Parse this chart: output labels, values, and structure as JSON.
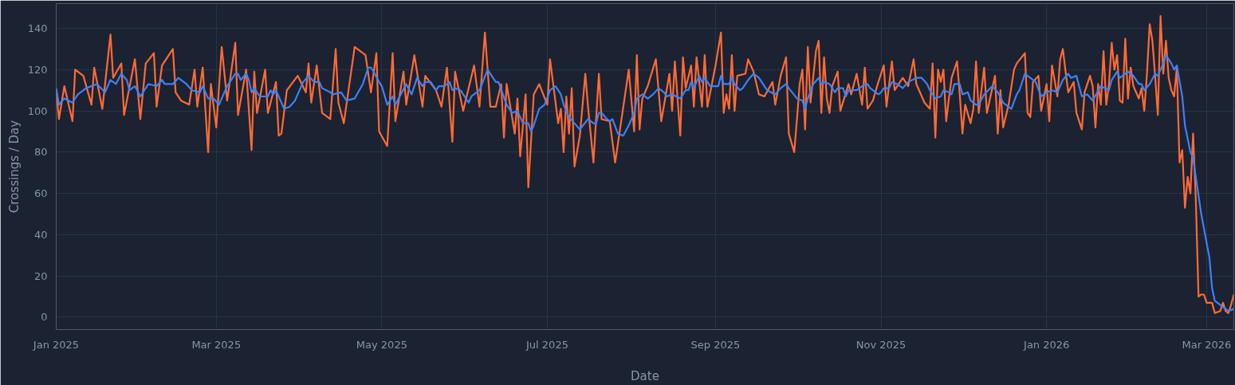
{
  "chart_data": {
    "type": "line",
    "xlabel": "Date",
    "ylabel": "Crossings / Day",
    "xlim": [
      "2025-01-01",
      "2026-03-11"
    ],
    "ylim": [
      -6,
      152
    ],
    "yticks": [
      0,
      20,
      40,
      60,
      80,
      100,
      120,
      140
    ],
    "xticks": [
      {
        "value": "2025-01-01",
        "label": "Jan 2025"
      },
      {
        "value": "2025-03-01",
        "label": "Mar 2025"
      },
      {
        "value": "2025-05-01",
        "label": "May 2025"
      },
      {
        "value": "2025-07-01",
        "label": "Jul 2025"
      },
      {
        "value": "2025-09-01",
        "label": "Sep 2025"
      },
      {
        "value": "2025-11-01",
        "label": "Nov 2025"
      },
      {
        "value": "2026-01-01",
        "label": "Jan 2026"
      },
      {
        "value": "2026-03-01",
        "label": "Mar 2026"
      }
    ],
    "grid": true,
    "series": [
      {
        "color": "#ff6b35",
        "x": [
          "2025-01-01",
          "2025-01-02",
          "2025-01-04",
          "2025-01-07",
          "2025-01-08",
          "2025-01-11",
          "2025-01-14",
          "2025-01-15",
          "2025-01-18",
          "2025-01-21",
          "2025-01-22",
          "2025-01-25",
          "2025-01-26",
          "2025-01-30",
          "2025-02-01",
          "2025-02-03",
          "2025-02-06",
          "2025-02-07",
          "2025-02-09",
          "2025-02-13",
          "2025-02-14",
          "2025-02-16",
          "2025-02-19",
          "2025-02-21",
          "2025-02-22",
          "2025-02-24",
          "2025-02-26",
          "2025-02-27",
          "2025-03-01",
          "2025-03-03",
          "2025-03-05",
          "2025-03-08",
          "2025-03-09",
          "2025-03-12",
          "2025-03-14",
          "2025-03-15",
          "2025-03-16",
          "2025-03-19",
          "2025-03-20",
          "2025-03-23",
          "2025-03-24",
          "2025-03-25",
          "2025-03-27",
          "2025-03-31",
          "2025-04-03",
          "2025-04-04",
          "2025-04-05",
          "2025-04-07",
          "2025-04-09",
          "2025-04-12",
          "2025-04-14",
          "2025-04-15",
          "2025-04-17",
          "2025-04-21",
          "2025-04-25",
          "2025-04-27",
          "2025-04-29",
          "2025-04-30",
          "2025-05-03",
          "2025-05-05",
          "2025-05-06",
          "2025-05-09",
          "2025-05-10",
          "2025-05-13",
          "2025-05-16",
          "2025-05-17",
          "2025-05-21",
          "2025-05-23",
          "2025-05-25",
          "2025-05-27",
          "2025-05-28",
          "2025-05-31",
          "2025-06-04",
          "2025-06-06",
          "2025-06-08",
          "2025-06-10",
          "2025-06-12",
          "2025-06-14",
          "2025-06-15",
          "2025-06-16",
          "2025-06-19",
          "2025-06-20",
          "2025-06-21",
          "2025-06-23",
          "2025-06-24",
          "2025-06-26",
          "2025-06-28",
          "2025-07-01",
          "2025-07-02",
          "2025-07-05",
          "2025-07-06",
          "2025-07-07",
          "2025-07-08",
          "2025-07-09",
          "2025-07-10",
          "2025-07-11",
          "2025-07-13",
          "2025-07-15",
          "2025-07-16",
          "2025-07-18",
          "2025-07-20",
          "2025-07-21",
          "2025-07-24",
          "2025-07-26",
          "2025-07-31",
          "2025-08-02",
          "2025-08-03",
          "2025-08-04",
          "2025-08-05",
          "2025-08-07",
          "2025-08-10",
          "2025-08-12",
          "2025-08-15",
          "2025-08-16",
          "2025-08-17",
          "2025-08-19",
          "2025-08-20",
          "2025-08-21",
          "2025-08-23",
          "2025-08-24",
          "2025-08-25",
          "2025-08-27",
          "2025-08-28",
          "2025-08-29",
          "2025-09-01",
          "2025-09-03",
          "2025-09-04",
          "2025-09-05",
          "2025-09-06",
          "2025-09-07",
          "2025-09-08",
          "2025-09-09",
          "2025-09-12",
          "2025-09-13",
          "2025-09-15",
          "2025-09-17",
          "2025-09-19",
          "2025-09-22",
          "2025-09-23",
          "2025-09-25",
          "2025-09-27",
          "2025-09-28",
          "2025-09-30",
          "2025-10-01",
          "2025-10-02",
          "2025-10-03",
          "2025-10-04",
          "2025-10-05",
          "2025-10-06",
          "2025-10-08",
          "2025-10-09",
          "2025-10-10",
          "2025-10-11",
          "2025-10-12",
          "2025-10-13",
          "2025-10-14",
          "2025-10-16",
          "2025-10-17",
          "2025-10-20",
          "2025-10-21",
          "2025-10-23",
          "2025-10-25",
          "2025-10-26",
          "2025-10-27",
          "2025-10-29",
          "2025-10-31",
          "2025-11-02",
          "2025-11-03",
          "2025-11-05",
          "2025-11-06",
          "2025-11-09",
          "2025-11-11",
          "2025-11-13",
          "2025-11-14",
          "2025-11-17",
          "2025-11-19",
          "2025-11-20",
          "2025-11-21",
          "2025-11-22",
          "2025-11-23",
          "2025-11-24",
          "2025-11-25",
          "2025-11-26",
          "2025-11-27",
          "2025-11-29",
          "2025-11-30",
          "2025-12-01",
          "2025-12-02",
          "2025-12-04",
          "2025-12-05",
          "2025-12-06",
          "2025-12-07",
          "2025-12-09",
          "2025-12-10",
          "2025-12-13",
          "2025-12-14",
          "2025-12-15",
          "2025-12-16",
          "2025-12-18",
          "2025-12-20",
          "2025-12-21",
          "2025-12-24",
          "2025-12-25",
          "2025-12-26",
          "2025-12-27",
          "2025-12-29",
          "2025-12-30",
          "2026-01-01",
          "2026-01-02",
          "2026-01-03",
          "2026-01-05",
          "2026-01-06",
          "2026-01-07",
          "2026-01-08",
          "2026-01-09",
          "2026-01-11",
          "2026-01-12",
          "2026-01-14",
          "2026-01-15",
          "2026-01-17",
          "2026-01-18",
          "2026-01-19",
          "2026-01-20",
          "2026-01-21",
          "2026-01-22",
          "2026-01-23",
          "2026-01-24",
          "2026-01-25",
          "2026-01-26",
          "2026-01-27",
          "2026-01-28",
          "2026-01-29",
          "2026-01-30",
          "2026-01-31",
          "2026-02-01",
          "2026-02-02",
          "2026-02-04",
          "2026-02-05",
          "2026-02-06",
          "2026-02-07",
          "2026-02-08",
          "2026-02-09",
          "2026-02-10",
          "2026-02-11",
          "2026-02-12",
          "2026-02-13",
          "2026-02-14",
          "2026-02-15",
          "2026-02-16",
          "2026-02-17",
          "2026-02-18",
          "2026-02-19",
          "2026-02-20",
          "2026-02-21",
          "2026-02-22",
          "2026-02-23",
          "2026-02-24",
          "2026-02-25",
          "2026-02-26",
          "2026-02-27",
          "2026-02-28",
          "2026-03-01",
          "2026-03-03",
          "2026-03-04",
          "2026-03-06",
          "2026-03-07",
          "2026-03-08",
          "2026-03-09",
          "2026-03-10",
          "2026-03-11"
        ],
        "values": [
          110,
          96,
          112,
          95,
          120,
          117,
          103,
          121,
          101,
          137,
          116,
          123,
          98,
          125,
          96,
          123,
          128,
          102,
          122,
          130,
          109,
          105,
          103,
          120,
          102,
          121,
          80,
          113,
          92,
          131,
          105,
          133,
          98,
          120,
          81,
          119,
          99,
          120,
          99,
          114,
          88,
          89,
          110,
          117,
          109,
          123,
          104,
          122,
          99,
          96,
          130,
          104,
          94,
          131,
          127,
          109,
          128,
          90,
          83,
          128,
          95,
          119,
          103,
          127,
          102,
          117,
          110,
          102,
          121,
          85,
          119,
          100,
          122,
          102,
          138,
          102,
          102,
          113,
          87,
          113,
          89,
          106,
          78,
          108,
          63,
          108,
          113,
          103,
          125,
          94,
          101,
          80,
          107,
          89,
          111,
          73,
          88,
          118,
          102,
          75,
          118,
          96,
          95,
          75,
          120,
          90,
          127,
          91,
          106,
          112,
          125,
          95,
          118,
          100,
          124,
          88,
          126,
          111,
          122,
          102,
          126,
          102,
          127,
          102,
          122,
          138,
          99,
          108,
          101,
          127,
          100,
          117,
          118,
          125,
          119,
          108,
          107,
          114,
          103,
          117,
          126,
          89,
          80,
          96,
          113,
          120,
          91,
          131,
          104,
          129,
          134,
          99,
          126,
          106,
          99,
          112,
          119,
          100,
          113,
          108,
          118,
          103,
          121,
          101,
          105,
          114,
          122,
          102,
          124,
          110,
          116,
          112,
          125,
          113,
          104,
          101,
          123,
          87,
          120,
          114,
          120,
          95,
          106,
          116,
          124,
          108,
          89,
          103,
          94,
          101,
          124,
          99,
          121,
          99,
          117,
          89,
          110,
          92,
          103,
          120,
          123,
          128,
          99,
          97,
          114,
          117,
          100,
          113,
          95,
          122,
          107,
          125,
          130,
          119,
          109,
          114,
          99,
          91,
          109,
          117,
          112,
          92,
          113,
          103,
          129,
          103,
          113,
          133,
          120,
          127,
          105,
          104,
          135,
          106,
          121,
          112,
          106,
          111,
          100,
          118,
          142,
          134,
          117,
          98,
          146,
          118,
          134,
          116,
          110,
          107,
          121,
          75,
          81,
          53,
          68,
          60,
          89,
          57,
          10,
          11,
          11,
          7,
          7,
          2,
          3,
          7,
          3,
          2,
          6,
          11
        ]
      },
      {
        "color": "#3b82f6",
        "x": [
          "2025-01-01",
          "2025-01-02",
          "2025-01-04",
          "2025-01-07",
          "2025-01-09",
          "2025-01-12",
          "2025-01-16",
          "2025-01-19",
          "2025-01-21",
          "2025-01-23",
          "2025-01-25",
          "2025-01-27",
          "2025-01-28",
          "2025-01-30",
          "2025-02-01",
          "2025-02-04",
          "2025-02-07",
          "2025-02-09",
          "2025-02-10",
          "2025-02-13",
          "2025-02-15",
          "2025-02-18",
          "2025-02-20",
          "2025-02-23",
          "2025-02-24",
          "2025-02-26",
          "2025-02-28",
          "2025-03-02",
          "2025-03-05",
          "2025-03-08",
          "2025-03-09",
          "2025-03-10",
          "2025-03-12",
          "2025-03-13",
          "2025-03-14",
          "2025-03-15",
          "2025-03-17",
          "2025-03-20",
          "2025-03-21",
          "2025-03-22",
          "2025-03-23",
          "2025-03-26",
          "2025-03-28",
          "2025-03-30",
          "2025-04-02",
          "2025-04-04",
          "2025-04-06",
          "2025-04-08",
          "2025-04-09",
          "2025-04-12",
          "2025-04-13",
          "2025-04-16",
          "2025-04-18",
          "2025-04-21",
          "2025-04-24",
          "2025-04-26",
          "2025-04-27",
          "2025-04-28",
          "2025-04-30",
          "2025-05-01",
          "2025-05-03",
          "2025-05-05",
          "2025-05-06",
          "2025-05-08",
          "2025-05-10",
          "2025-05-12",
          "2025-05-14",
          "2025-05-16",
          "2025-05-17",
          "2025-05-19",
          "2025-05-21",
          "2025-05-22",
          "2025-05-24",
          "2025-05-26",
          "2025-05-27",
          "2025-05-28",
          "2025-05-30",
          "2025-06-02",
          "2025-06-03",
          "2025-06-06",
          "2025-06-09",
          "2025-06-12",
          "2025-06-13",
          "2025-06-16",
          "2025-06-18",
          "2025-06-20",
          "2025-06-22",
          "2025-06-24",
          "2025-06-25",
          "2025-06-26",
          "2025-06-28",
          "2025-06-30",
          "2025-07-02",
          "2025-07-04",
          "2025-07-05",
          "2025-07-06",
          "2025-07-07",
          "2025-07-09",
          "2025-07-11",
          "2025-07-13",
          "2025-07-16",
          "2025-07-18",
          "2025-07-19",
          "2025-07-20",
          "2025-07-21",
          "2025-07-23",
          "2025-07-24",
          "2025-07-25",
          "2025-07-27",
          "2025-07-29",
          "2025-07-31",
          "2025-08-02",
          "2025-08-03",
          "2025-08-05",
          "2025-08-07",
          "2025-08-09",
          "2025-08-11",
          "2025-08-13",
          "2025-08-14",
          "2025-08-16",
          "2025-08-19",
          "2025-08-21",
          "2025-08-22",
          "2025-08-23",
          "2025-08-24",
          "2025-08-26",
          "2025-08-27",
          "2025-08-28",
          "2025-08-30",
          "2025-09-01",
          "2025-09-02",
          "2025-09-03",
          "2025-09-04",
          "2025-09-06",
          "2025-09-07",
          "2025-09-08",
          "2025-09-10",
          "2025-09-11",
          "2025-09-13",
          "2025-09-15",
          "2025-09-17",
          "2025-09-18",
          "2025-09-20",
          "2025-09-23",
          "2025-09-25",
          "2025-09-27",
          "2025-09-28",
          "2025-10-01",
          "2025-10-03",
          "2025-10-04",
          "2025-10-05",
          "2025-10-07",
          "2025-10-09",
          "2025-10-10",
          "2025-10-11",
          "2025-10-13",
          "2025-10-15",
          "2025-10-16",
          "2025-10-18",
          "2025-10-19",
          "2025-10-20",
          "2025-10-23",
          "2025-10-25",
          "2025-10-27",
          "2025-10-28",
          "2025-10-31",
          "2025-11-01",
          "2025-11-02",
          "2025-11-04",
          "2025-11-05",
          "2025-11-07",
          "2025-11-09",
          "2025-11-11",
          "2025-11-14",
          "2025-11-16",
          "2025-11-18",
          "2025-11-19",
          "2025-11-21",
          "2025-11-23",
          "2025-11-24",
          "2025-11-26",
          "2025-11-27",
          "2025-11-28",
          "2025-11-30",
          "2025-12-01",
          "2025-12-03",
          "2025-12-04",
          "2025-12-06",
          "2025-12-07",
          "2025-12-09",
          "2025-12-12",
          "2025-12-14",
          "2025-12-16",
          "2025-12-19",
          "2025-12-21",
          "2025-12-22",
          "2025-12-24",
          "2025-12-26",
          "2025-12-28",
          "2025-12-30",
          "2026-01-01",
          "2026-01-03",
          "2026-01-05",
          "2026-01-07",
          "2026-01-09",
          "2026-01-10",
          "2026-01-12",
          "2026-01-14",
          "2026-01-16",
          "2026-01-18",
          "2026-01-21",
          "2026-01-24",
          "2026-01-25",
          "2026-01-27",
          "2026-01-28",
          "2026-01-31",
          "2026-02-02",
          "2026-02-04",
          "2026-02-05",
          "2026-02-06",
          "2026-02-08",
          "2026-02-10",
          "2026-02-11",
          "2026-02-13",
          "2026-02-14",
          "2026-02-16",
          "2026-02-17",
          "2026-02-18",
          "2026-02-20",
          "2026-02-21",
          "2026-02-23",
          "2026-02-24",
          "2026-02-27",
          "2026-02-28",
          "2026-03-02",
          "2026-03-03",
          "2026-03-04",
          "2026-03-07",
          "2026-03-09",
          "2026-03-11"
        ],
        "values": [
          111,
          103,
          106,
          104,
          108,
          111,
          113,
          109,
          115,
          113,
          118,
          115,
          110,
          112,
          107,
          113,
          112,
          115,
          113,
          113,
          116,
          113,
          110,
          109,
          112,
          106,
          106,
          103,
          112,
          118,
          118,
          115,
          118,
          115,
          109,
          111,
          107,
          107,
          110,
          108,
          110,
          101,
          102,
          105,
          114,
          117,
          114,
          114,
          111,
          109,
          108,
          109,
          105,
          106,
          113,
          121,
          121,
          119,
          114,
          112,
          103,
          107,
          103,
          108,
          113,
          108,
          116,
          112,
          114,
          114,
          110,
          112,
          112,
          114,
          110,
          111,
          110,
          104,
          107,
          110,
          120,
          114,
          114,
          103,
          99,
          100,
          94,
          94,
          90,
          93,
          101,
          103,
          110,
          112,
          110,
          108,
          103,
          97,
          94,
          91,
          96,
          94,
          94,
          99,
          99,
          96,
          95,
          96,
          89,
          88,
          93,
          99,
          106,
          108,
          106,
          108,
          111,
          109,
          107,
          108,
          106,
          110,
          110,
          114,
          111,
          117,
          114,
          116,
          112,
          112,
          112,
          117,
          113,
          113,
          116,
          113,
          110,
          111,
          115,
          118,
          116,
          114,
          110,
          108,
          111,
          113,
          111,
          106,
          105,
          101,
          106,
          113,
          116,
          113,
          114,
          113,
          109,
          111,
          111,
          107,
          110,
          110,
          112,
          113,
          111,
          108,
          109,
          111,
          111,
          114,
          113,
          111,
          114,
          116,
          116,
          113,
          110,
          106,
          107,
          110,
          109,
          108,
          113,
          113,
          108,
          109,
          105,
          103,
          103,
          108,
          112,
          109,
          104,
          101,
          108,
          110,
          118,
          116,
          114,
          107,
          109,
          110,
          109,
          115,
          118,
          116,
          117,
          107,
          108,
          105,
          112,
          110,
          115,
          119,
          116,
          119,
          117,
          113,
          113,
          110,
          113,
          118,
          117,
          123,
          127,
          123,
          120,
          122,
          107,
          93,
          80,
          77,
          50,
          43,
          29,
          14,
          8,
          5,
          3,
          4
        ]
      }
    ]
  }
}
